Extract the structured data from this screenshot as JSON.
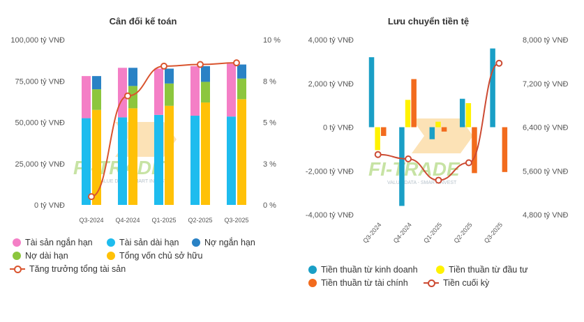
{
  "colors": {
    "tai_san_ngan_han": "#f47fc6",
    "tai_san_dai_han": "#1ebcee",
    "no_ngan_han": "#2a82c5",
    "no_dai_han": "#8cc63e",
    "tong_von_chu_so_huu": "#ffc107",
    "tang_truong": "#d9542e",
    "kinh_doanh": "#1a9fc6",
    "dau_tu": "#fff200",
    "tai_chinh": "#f26b1d",
    "tien_cuoi_ky": "#cc4a32"
  },
  "chart_data": [
    {
      "type": "bar",
      "title": "Cân đối kế toán",
      "categories": [
        "Q3-2024",
        "Q4-2024",
        "Q1-2025",
        "Q2-2025",
        "Q3-2025"
      ],
      "y_ticks": [
        "0 tỷ VNĐ",
        "25,000 tỷ VNĐ",
        "50,000 tỷ VNĐ",
        "75,000 tỷ VNĐ",
        "100,000 tỷ VNĐ"
      ],
      "y2_ticks": [
        "0 %",
        "3 %",
        "5 %",
        "8 %",
        "10 %"
      ],
      "ylim": [
        0,
        100000
      ],
      "y2lim": [
        0,
        10
      ],
      "stacks": [
        {
          "series": [
            {
              "name": "Tài sản dài hạn",
              "values": [
                52500,
                53000,
                54500,
                54000,
                53500
              ]
            },
            {
              "name": "Tài sản ngắn hạn",
              "values": [
                25500,
                30000,
                28000,
                30000,
                32000
              ]
            }
          ]
        },
        {
          "series": [
            {
              "name": "Tổng vốn chủ sở hữu",
              "values": [
                57500,
                58500,
                60000,
                62000,
                64000
              ]
            },
            {
              "name": "Nợ dài hạn",
              "values": [
                12500,
                13500,
                13500,
                12500,
                12500
              ]
            },
            {
              "name": "Nợ ngắn hạn",
              "values": [
                8000,
                11000,
                9000,
                9500,
                8500
              ]
            }
          ]
        }
      ],
      "line": {
        "name": "Tăng trưởng tổng tài sản",
        "values": [
          0.5,
          6.6,
          8.4,
          8.5,
          8.6
        ],
        "axis": "right"
      },
      "legend": [
        "Tài sản ngắn hạn",
        "Tài sản dài hạn",
        "Nợ ngắn hạn",
        "Nợ dài hạn",
        "Tổng vốn chủ sở hữu",
        "Tăng trưởng tổng tài sản"
      ]
    },
    {
      "type": "bar",
      "title": "Lưu chuyển tiền tệ",
      "categories": [
        "Q3-2024",
        "Q4-2024",
        "Q1-2025",
        "Q2-2025",
        "Q3-2025"
      ],
      "y_ticks": [
        "-4,000 tỷ VNĐ",
        "-2,000 tỷ VNĐ",
        "0 tỷ VNĐ",
        "2,000 tỷ VNĐ",
        "4,000 tỷ VNĐ"
      ],
      "y2_ticks": [
        "4,800 tỷ VNĐ",
        "5,600 tỷ VNĐ",
        "6,400 tỷ VNĐ",
        "7,200 tỷ VNĐ",
        "8,000 tỷ VNĐ"
      ],
      "ylim": [
        -4000,
        4000
      ],
      "y2lim": [
        4800,
        8000
      ],
      "series": [
        {
          "name": "Tiền thuần từ kinh doanh",
          "values": [
            3200,
            -3600,
            -550,
            1300,
            3600
          ]
        },
        {
          "name": "Tiền thuần từ đầu tư",
          "values": [
            -1050,
            1250,
            250,
            1100,
            0
          ]
        },
        {
          "name": "Tiền thuần từ tài chính",
          "values": [
            -400,
            2200,
            -200,
            -2100,
            -2050
          ]
        }
      ],
      "line": {
        "name": "Tiền cuối kỳ",
        "values": [
          5900,
          5820,
          5430,
          5750,
          7570
        ],
        "axis": "right"
      },
      "legend": [
        "Tiền thuần từ kinh doanh",
        "Tiền thuần từ đầu tư",
        "Tiền thuần từ tài chính",
        "Tiền cuối kỳ"
      ]
    }
  ],
  "watermark": {
    "brand": "FI-TRADE",
    "tagline": "VALUE DATA - SMART INVEST"
  }
}
